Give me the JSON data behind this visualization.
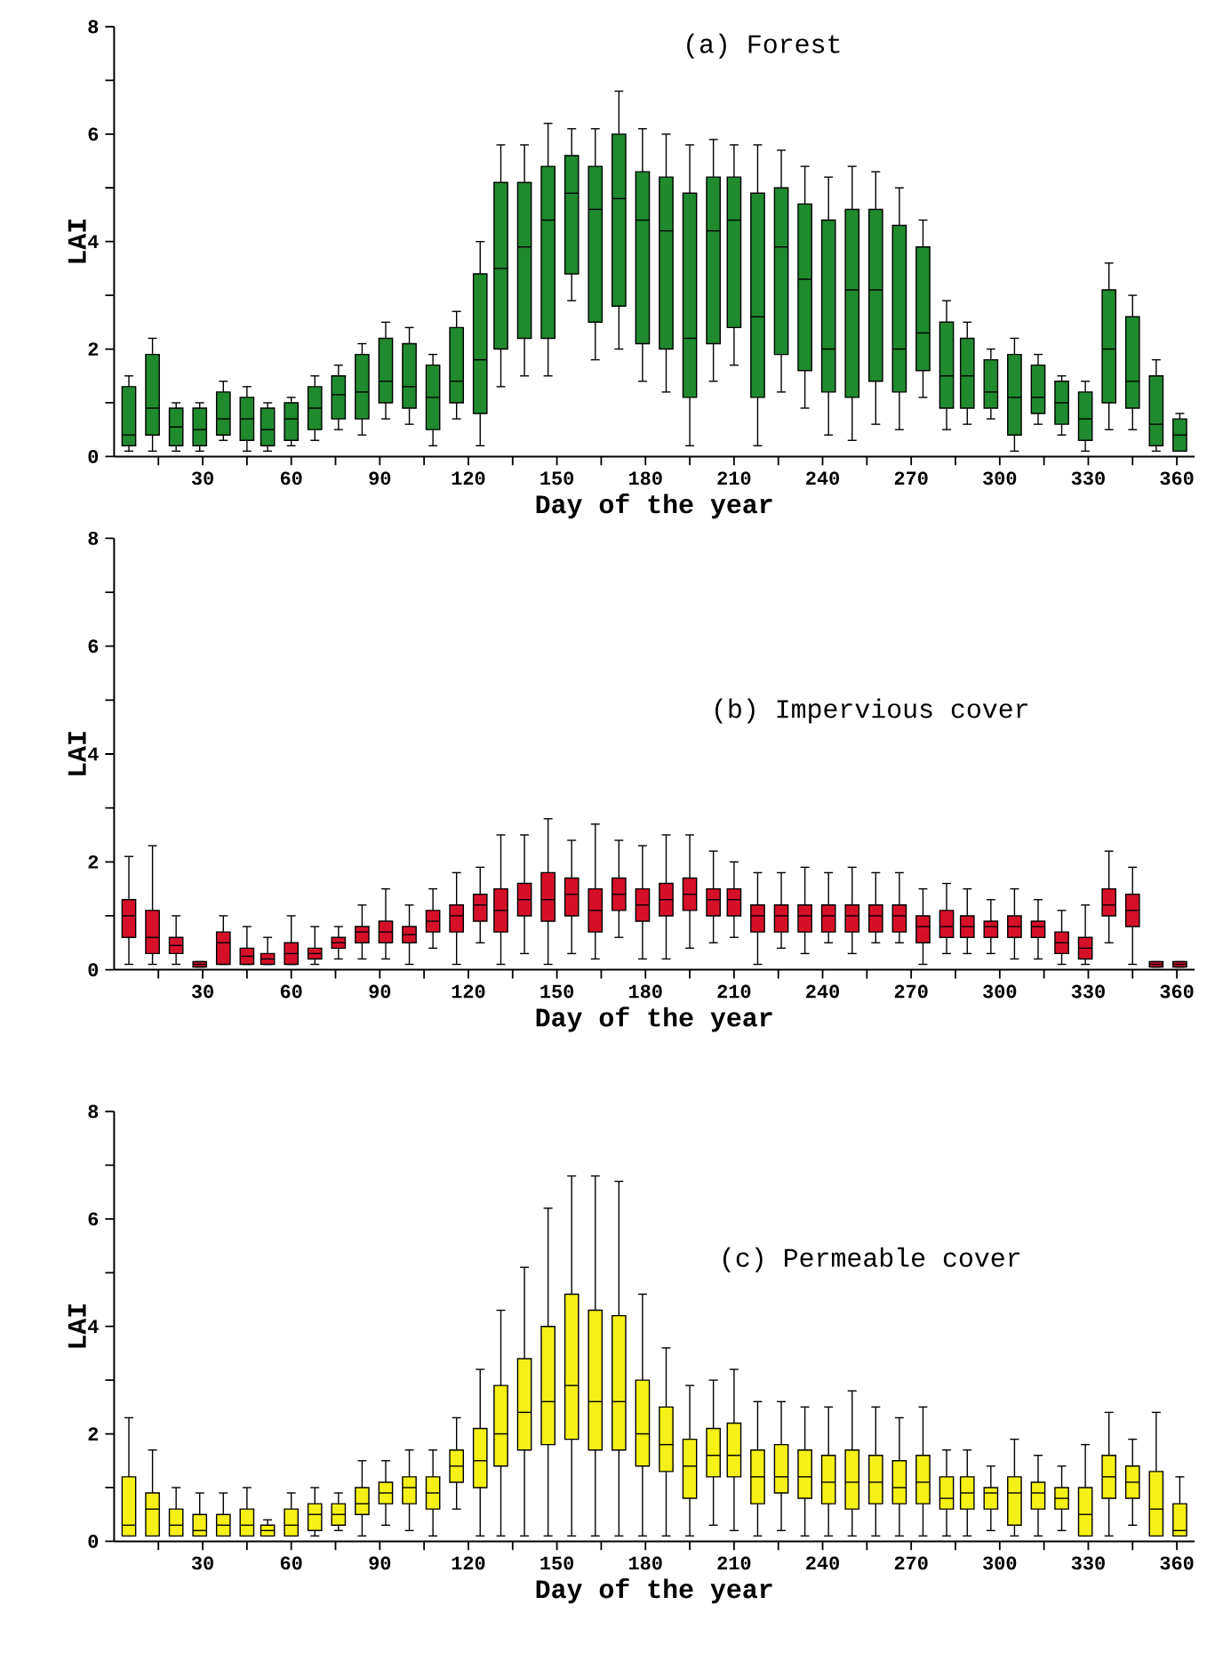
{
  "chart_data": [
    {
      "type": "box",
      "title": "(a)  Forest",
      "xlabel": "Day of the year",
      "ylabel": "LAI",
      "color": "#1f8a2e",
      "xlim": [
        0,
        366
      ],
      "ylim": [
        0,
        8
      ],
      "xticks": [
        {
          "value": 15,
          "label": null
        },
        30,
        {
          "value": 45,
          "label": null
        },
        60,
        {
          "value": 75,
          "label": null
        },
        90,
        {
          "value": 105,
          "label": null
        },
        120,
        {
          "value": 135,
          "label": null
        },
        150,
        {
          "value": 165,
          "label": null
        },
        180,
        {
          "value": 195,
          "label": null
        },
        210,
        {
          "value": 225,
          "label": null
        },
        240,
        {
          "value": 255,
          "label": null
        },
        270,
        {
          "value": 285,
          "label": null
        },
        300,
        {
          "value": 315,
          "label": null
        },
        330,
        {
          "value": 345,
          "label": null
        },
        360
      ],
      "yticks": [
        0,
        {
          "value": 1,
          "label": null
        },
        2,
        {
          "value": 3,
          "label": null
        },
        4,
        {
          "value": 5,
          "label": null
        },
        6,
        {
          "value": 7,
          "label": null
        },
        8
      ],
      "x": [
        5,
        13,
        21,
        29,
        37,
        45,
        52,
        60,
        68,
        76,
        84,
        92,
        100,
        108,
        116,
        124,
        131,
        139,
        147,
        155,
        163,
        171,
        179,
        187,
        195,
        203,
        210,
        218,
        226,
        234,
        242,
        250,
        258,
        266,
        274,
        282,
        289,
        297,
        305,
        313,
        321,
        329,
        337,
        345,
        353,
        361
      ],
      "boxes": [
        {
          "low": 0.1,
          "q1": 0.2,
          "median": 0.4,
          "q3": 1.3,
          "high": 1.5
        },
        {
          "low": 0.1,
          "q1": 0.4,
          "median": 0.9,
          "q3": 1.9,
          "high": 2.2
        },
        {
          "low": 0.1,
          "q1": 0.2,
          "median": 0.55,
          "q3": 0.9,
          "high": 1.0
        },
        {
          "low": 0.1,
          "q1": 0.2,
          "median": 0.5,
          "q3": 0.9,
          "high": 1.0
        },
        {
          "low": 0.3,
          "q1": 0.4,
          "median": 0.7,
          "q3": 1.2,
          "high": 1.4
        },
        {
          "low": 0.1,
          "q1": 0.3,
          "median": 0.7,
          "q3": 1.1,
          "high": 1.3
        },
        {
          "low": 0.1,
          "q1": 0.2,
          "median": 0.5,
          "q3": 0.9,
          "high": 1.0
        },
        {
          "low": 0.2,
          "q1": 0.3,
          "median": 0.7,
          "q3": 1.0,
          "high": 1.1
        },
        {
          "low": 0.3,
          "q1": 0.5,
          "median": 0.9,
          "q3": 1.3,
          "high": 1.5
        },
        {
          "low": 0.5,
          "q1": 0.7,
          "median": 1.15,
          "q3": 1.5,
          "high": 1.7
        },
        {
          "low": 0.4,
          "q1": 0.7,
          "median": 1.2,
          "q3": 1.9,
          "high": 2.1
        },
        {
          "low": 0.7,
          "q1": 1.0,
          "median": 1.4,
          "q3": 2.2,
          "high": 2.5
        },
        {
          "low": 0.6,
          "q1": 0.9,
          "median": 1.3,
          "q3": 2.1,
          "high": 2.4
        },
        {
          "low": 0.2,
          "q1": 0.5,
          "median": 1.1,
          "q3": 1.7,
          "high": 1.9
        },
        {
          "low": 0.7,
          "q1": 1.0,
          "median": 1.4,
          "q3": 2.4,
          "high": 2.7
        },
        {
          "low": 0.2,
          "q1": 0.8,
          "median": 1.8,
          "q3": 3.4,
          "high": 4.0
        },
        {
          "low": 1.3,
          "q1": 2.0,
          "median": 3.5,
          "q3": 5.1,
          "high": 5.8
        },
        {
          "low": 1.5,
          "q1": 2.2,
          "median": 3.9,
          "q3": 5.1,
          "high": 5.8
        },
        {
          "low": 1.5,
          "q1": 2.2,
          "median": 4.4,
          "q3": 5.4,
          "high": 6.2
        },
        {
          "low": 2.9,
          "q1": 3.4,
          "median": 4.9,
          "q3": 5.6,
          "high": 6.1
        },
        {
          "low": 1.8,
          "q1": 2.5,
          "median": 4.6,
          "q3": 5.4,
          "high": 6.1
        },
        {
          "low": 2.0,
          "q1": 2.8,
          "median": 4.8,
          "q3": 6.0,
          "high": 6.8
        },
        {
          "low": 1.4,
          "q1": 2.1,
          "median": 4.4,
          "q3": 5.3,
          "high": 6.1
        },
        {
          "low": 1.2,
          "q1": 2.0,
          "median": 4.2,
          "q3": 5.2,
          "high": 6.0
        },
        {
          "low": 0.2,
          "q1": 1.1,
          "median": 2.2,
          "q3": 4.9,
          "high": 5.8
        },
        {
          "low": 1.4,
          "q1": 2.1,
          "median": 4.2,
          "q3": 5.2,
          "high": 5.9
        },
        {
          "low": 1.7,
          "q1": 2.4,
          "median": 4.4,
          "q3": 5.2,
          "high": 5.8
        },
        {
          "low": 0.2,
          "q1": 1.1,
          "median": 2.6,
          "q3": 4.9,
          "high": 5.8
        },
        {
          "low": 1.2,
          "q1": 1.9,
          "median": 3.9,
          "q3": 5.0,
          "high": 5.7
        },
        {
          "low": 0.9,
          "q1": 1.6,
          "median": 3.3,
          "q3": 4.7,
          "high": 5.4
        },
        {
          "low": 0.4,
          "q1": 1.2,
          "median": 2.0,
          "q3": 4.4,
          "high": 5.2
        },
        {
          "low": 0.3,
          "q1": 1.1,
          "median": 3.1,
          "q3": 4.6,
          "high": 5.4
        },
        {
          "low": 0.6,
          "q1": 1.4,
          "median": 3.1,
          "q3": 4.6,
          "high": 5.3
        },
        {
          "low": 0.5,
          "q1": 1.2,
          "median": 2.0,
          "q3": 4.3,
          "high": 5.0
        },
        {
          "low": 1.1,
          "q1": 1.6,
          "median": 2.3,
          "q3": 3.9,
          "high": 4.4
        },
        {
          "low": 0.5,
          "q1": 0.9,
          "median": 1.5,
          "q3": 2.5,
          "high": 2.9
        },
        {
          "low": 0.6,
          "q1": 0.9,
          "median": 1.5,
          "q3": 2.2,
          "high": 2.5
        },
        {
          "low": 0.7,
          "q1": 0.9,
          "median": 1.2,
          "q3": 1.8,
          "high": 2.0
        },
        {
          "low": 0.1,
          "q1": 0.4,
          "median": 1.1,
          "q3": 1.9,
          "high": 2.2
        },
        {
          "low": 0.6,
          "q1": 0.8,
          "median": 1.1,
          "q3": 1.7,
          "high": 1.9
        },
        {
          "low": 0.4,
          "q1": 0.6,
          "median": 1.0,
          "q3": 1.4,
          "high": 1.5
        },
        {
          "low": 0.1,
          "q1": 0.3,
          "median": 0.7,
          "q3": 1.2,
          "high": 1.4
        },
        {
          "low": 0.5,
          "q1": 1.0,
          "median": 2.0,
          "q3": 3.1,
          "high": 3.6
        },
        {
          "low": 0.5,
          "q1": 0.9,
          "median": 1.4,
          "q3": 2.6,
          "high": 3.0
        },
        {
          "low": 0.1,
          "q1": 0.2,
          "median": 0.6,
          "q3": 1.5,
          "high": 1.8
        },
        {
          "low": 0.1,
          "q1": 0.1,
          "median": 0.4,
          "q3": 0.7,
          "high": 0.8
        }
      ]
    },
    {
      "type": "box",
      "title": "(b)  Impervious cover",
      "xlabel": "Day of the year",
      "ylabel": "LAI",
      "color": "#d7102a",
      "xlim": [
        0,
        366
      ],
      "ylim": [
        0,
        8
      ],
      "xticks": [
        {
          "value": 15,
          "label": null
        },
        30,
        {
          "value": 45,
          "label": null
        },
        60,
        {
          "value": 75,
          "label": null
        },
        90,
        {
          "value": 105,
          "label": null
        },
        120,
        {
          "value": 135,
          "label": null
        },
        150,
        {
          "value": 165,
          "label": null
        },
        180,
        {
          "value": 195,
          "label": null
        },
        210,
        {
          "value": 225,
          "label": null
        },
        240,
        {
          "value": 255,
          "label": null
        },
        270,
        {
          "value": 285,
          "label": null
        },
        300,
        {
          "value": 315,
          "label": null
        },
        330,
        {
          "value": 345,
          "label": null
        },
        360
      ],
      "yticks": [
        0,
        {
          "value": 1,
          "label": null
        },
        2,
        {
          "value": 3,
          "label": null
        },
        4,
        {
          "value": 5,
          "label": null
        },
        6,
        {
          "value": 7,
          "label": null
        },
        8
      ],
      "x": [
        5,
        13,
        21,
        29,
        37,
        45,
        52,
        60,
        68,
        76,
        84,
        92,
        100,
        108,
        116,
        124,
        131,
        139,
        147,
        155,
        163,
        171,
        179,
        187,
        195,
        203,
        210,
        218,
        226,
        234,
        242,
        250,
        258,
        266,
        274,
        282,
        289,
        297,
        305,
        313,
        321,
        329,
        337,
        345,
        353,
        361
      ],
      "boxes": [
        {
          "low": 0.1,
          "q1": 0.6,
          "median": 1.0,
          "q3": 1.3,
          "high": 2.1
        },
        {
          "low": 0.1,
          "q1": 0.3,
          "median": 0.6,
          "q3": 1.1,
          "high": 2.3
        },
        {
          "low": 0.1,
          "q1": 0.3,
          "median": 0.45,
          "q3": 0.6,
          "high": 1.0
        },
        {
          "low": 0.05,
          "q1": 0.05,
          "median": 0.1,
          "q3": 0.15,
          "high": 0.15
        },
        {
          "low": 0.1,
          "q1": 0.1,
          "median": 0.5,
          "q3": 0.7,
          "high": 1.0
        },
        {
          "low": 0.1,
          "q1": 0.1,
          "median": 0.25,
          "q3": 0.4,
          "high": 0.8
        },
        {
          "low": 0.1,
          "q1": 0.1,
          "median": 0.2,
          "q3": 0.3,
          "high": 0.6
        },
        {
          "low": 0.1,
          "q1": 0.1,
          "median": 0.3,
          "q3": 0.5,
          "high": 1.0
        },
        {
          "low": 0.1,
          "q1": 0.2,
          "median": 0.3,
          "q3": 0.4,
          "high": 0.8
        },
        {
          "low": 0.2,
          "q1": 0.4,
          "median": 0.5,
          "q3": 0.6,
          "high": 0.8
        },
        {
          "low": 0.2,
          "q1": 0.5,
          "median": 0.7,
          "q3": 0.8,
          "high": 1.2
        },
        {
          "low": 0.2,
          "q1": 0.5,
          "median": 0.7,
          "q3": 0.9,
          "high": 1.5
        },
        {
          "low": 0.1,
          "q1": 0.5,
          "median": 0.65,
          "q3": 0.8,
          "high": 1.2
        },
        {
          "low": 0.4,
          "q1": 0.7,
          "median": 0.9,
          "q3": 1.1,
          "high": 1.5
        },
        {
          "low": 0.1,
          "q1": 0.7,
          "median": 1.0,
          "q3": 1.2,
          "high": 1.8
        },
        {
          "low": 0.5,
          "q1": 0.9,
          "median": 1.2,
          "q3": 1.4,
          "high": 1.9
        },
        {
          "low": 0.1,
          "q1": 0.7,
          "median": 1.1,
          "q3": 1.5,
          "high": 2.5
        },
        {
          "low": 0.3,
          "q1": 1.0,
          "median": 1.3,
          "q3": 1.6,
          "high": 2.5
        },
        {
          "low": 0.1,
          "q1": 0.9,
          "median": 1.3,
          "q3": 1.8,
          "high": 2.8
        },
        {
          "low": 0.3,
          "q1": 1.0,
          "median": 1.4,
          "q3": 1.7,
          "high": 2.4
        },
        {
          "low": 0.2,
          "q1": 0.7,
          "median": 1.1,
          "q3": 1.5,
          "high": 2.7
        },
        {
          "low": 0.6,
          "q1": 1.1,
          "median": 1.4,
          "q3": 1.7,
          "high": 2.4
        },
        {
          "low": 0.2,
          "q1": 0.9,
          "median": 1.2,
          "q3": 1.5,
          "high": 2.3
        },
        {
          "low": 0.2,
          "q1": 1.0,
          "median": 1.3,
          "q3": 1.6,
          "high": 2.5
        },
        {
          "low": 0.4,
          "q1": 1.1,
          "median": 1.4,
          "q3": 1.7,
          "high": 2.5
        },
        {
          "low": 0.5,
          "q1": 1.0,
          "median": 1.3,
          "q3": 1.5,
          "high": 2.2
        },
        {
          "low": 0.6,
          "q1": 1.0,
          "median": 1.3,
          "q3": 1.5,
          "high": 2.0
        },
        {
          "low": 0.1,
          "q1": 0.7,
          "median": 1.0,
          "q3": 1.2,
          "high": 1.8
        },
        {
          "low": 0.4,
          "q1": 0.7,
          "median": 1.0,
          "q3": 1.2,
          "high": 1.8
        },
        {
          "low": 0.3,
          "q1": 0.7,
          "median": 1.0,
          "q3": 1.2,
          "high": 1.9
        },
        {
          "low": 0.5,
          "q1": 0.7,
          "median": 1.0,
          "q3": 1.2,
          "high": 1.8
        },
        {
          "low": 0.3,
          "q1": 0.7,
          "median": 1.0,
          "q3": 1.2,
          "high": 1.9
        },
        {
          "low": 0.5,
          "q1": 0.7,
          "median": 1.0,
          "q3": 1.2,
          "high": 1.8
        },
        {
          "low": 0.5,
          "q1": 0.7,
          "median": 1.0,
          "q3": 1.2,
          "high": 1.8
        },
        {
          "low": 0.1,
          "q1": 0.5,
          "median": 0.8,
          "q3": 1.0,
          "high": 1.5
        },
        {
          "low": 0.3,
          "q1": 0.6,
          "median": 0.8,
          "q3": 1.1,
          "high": 1.6
        },
        {
          "low": 0.3,
          "q1": 0.6,
          "median": 0.8,
          "q3": 1.0,
          "high": 1.5
        },
        {
          "low": 0.3,
          "q1": 0.6,
          "median": 0.8,
          "q3": 0.9,
          "high": 1.3
        },
        {
          "low": 0.2,
          "q1": 0.6,
          "median": 0.8,
          "q3": 1.0,
          "high": 1.5
        },
        {
          "low": 0.2,
          "q1": 0.6,
          "median": 0.8,
          "q3": 0.9,
          "high": 1.3
        },
        {
          "low": 0.1,
          "q1": 0.3,
          "median": 0.5,
          "q3": 0.7,
          "high": 1.1
        },
        {
          "low": 0.1,
          "q1": 0.2,
          "median": 0.4,
          "q3": 0.6,
          "high": 1.2
        },
        {
          "low": 0.5,
          "q1": 1.0,
          "median": 1.2,
          "q3": 1.5,
          "high": 2.2
        },
        {
          "low": 0.1,
          "q1": 0.8,
          "median": 1.1,
          "q3": 1.4,
          "high": 1.9
        },
        {
          "low": 0.05,
          "q1": 0.05,
          "median": 0.1,
          "q3": 0.15,
          "high": 0.15
        },
        {
          "low": 0.05,
          "q1": 0.05,
          "median": 0.1,
          "q3": 0.15,
          "high": 0.15
        }
      ]
    },
    {
      "type": "box",
      "title": "(c)  Permeable cover",
      "xlabel": "Day of the year",
      "ylabel": "LAI",
      "color": "#f5f016",
      "xlim": [
        0,
        366
      ],
      "ylim": [
        0,
        8
      ],
      "xticks": [
        {
          "value": 15,
          "label": null
        },
        30,
        {
          "value": 45,
          "label": null
        },
        60,
        {
          "value": 75,
          "label": null
        },
        90,
        {
          "value": 105,
          "label": null
        },
        120,
        {
          "value": 135,
          "label": null
        },
        150,
        {
          "value": 165,
          "label": null
        },
        180,
        {
          "value": 195,
          "label": null
        },
        210,
        {
          "value": 225,
          "label": null
        },
        240,
        {
          "value": 255,
          "label": null
        },
        270,
        {
          "value": 285,
          "label": null
        },
        300,
        {
          "value": 315,
          "label": null
        },
        330,
        {
          "value": 345,
          "label": null
        },
        360
      ],
      "yticks": [
        0,
        {
          "value": 1,
          "label": null
        },
        2,
        {
          "value": 3,
          "label": null
        },
        4,
        {
          "value": 5,
          "label": null
        },
        6,
        {
          "value": 7,
          "label": null
        },
        8
      ],
      "x": [
        5,
        13,
        21,
        29,
        37,
        45,
        52,
        60,
        68,
        76,
        84,
        92,
        100,
        108,
        116,
        124,
        131,
        139,
        147,
        155,
        163,
        171,
        179,
        187,
        195,
        203,
        210,
        218,
        226,
        234,
        242,
        250,
        258,
        266,
        274,
        282,
        289,
        297,
        305,
        313,
        321,
        329,
        337,
        345,
        353,
        361
      ],
      "boxes": [
        {
          "low": 0.1,
          "q1": 0.1,
          "median": 0.3,
          "q3": 1.2,
          "high": 2.3
        },
        {
          "low": 0.1,
          "q1": 0.1,
          "median": 0.6,
          "q3": 0.9,
          "high": 1.7
        },
        {
          "low": 0.1,
          "q1": 0.1,
          "median": 0.3,
          "q3": 0.6,
          "high": 1.0
        },
        {
          "low": 0.1,
          "q1": 0.1,
          "median": 0.2,
          "q3": 0.5,
          "high": 0.9
        },
        {
          "low": 0.1,
          "q1": 0.1,
          "median": 0.3,
          "q3": 0.5,
          "high": 0.9
        },
        {
          "low": 0.1,
          "q1": 0.1,
          "median": 0.3,
          "q3": 0.6,
          "high": 1.0
        },
        {
          "low": 0.1,
          "q1": 0.1,
          "median": 0.2,
          "q3": 0.3,
          "high": 0.4
        },
        {
          "low": 0.1,
          "q1": 0.1,
          "median": 0.3,
          "q3": 0.6,
          "high": 0.9
        },
        {
          "low": 0.1,
          "q1": 0.2,
          "median": 0.5,
          "q3": 0.7,
          "high": 1.0
        },
        {
          "low": 0.2,
          "q1": 0.3,
          "median": 0.5,
          "q3": 0.7,
          "high": 0.9
        },
        {
          "low": 0.1,
          "q1": 0.5,
          "median": 0.7,
          "q3": 1.0,
          "high": 1.5
        },
        {
          "low": 0.3,
          "q1": 0.7,
          "median": 0.9,
          "q3": 1.1,
          "high": 1.5
        },
        {
          "low": 0.2,
          "q1": 0.7,
          "median": 1.0,
          "q3": 1.2,
          "high": 1.7
        },
        {
          "low": 0.1,
          "q1": 0.6,
          "median": 0.9,
          "q3": 1.2,
          "high": 1.7
        },
        {
          "low": 0.6,
          "q1": 1.1,
          "median": 1.4,
          "q3": 1.7,
          "high": 2.3
        },
        {
          "low": 0.1,
          "q1": 1.0,
          "median": 1.5,
          "q3": 2.1,
          "high": 3.2
        },
        {
          "low": 0.1,
          "q1": 1.4,
          "median": 2.0,
          "q3": 2.9,
          "high": 4.3
        },
        {
          "low": 0.1,
          "q1": 1.7,
          "median": 2.4,
          "q3": 3.4,
          "high": 5.1
        },
        {
          "low": 0.1,
          "q1": 1.8,
          "median": 2.6,
          "q3": 4.0,
          "high": 6.2
        },
        {
          "low": 0.1,
          "q1": 1.9,
          "median": 2.9,
          "q3": 4.6,
          "high": 6.8
        },
        {
          "low": 0.1,
          "q1": 1.7,
          "median": 2.6,
          "q3": 4.3,
          "high": 6.8
        },
        {
          "low": 0.1,
          "q1": 1.7,
          "median": 2.6,
          "q3": 4.2,
          "high": 6.7
        },
        {
          "low": 0.1,
          "q1": 1.4,
          "median": 2.0,
          "q3": 3.0,
          "high": 4.6
        },
        {
          "low": 0.1,
          "q1": 1.3,
          "median": 1.8,
          "q3": 2.5,
          "high": 3.6
        },
        {
          "low": 0.1,
          "q1": 0.8,
          "median": 1.4,
          "q3": 1.9,
          "high": 2.9
        },
        {
          "low": 0.3,
          "q1": 1.2,
          "median": 1.6,
          "q3": 2.1,
          "high": 3.0
        },
        {
          "low": 0.2,
          "q1": 1.2,
          "median": 1.6,
          "q3": 2.2,
          "high": 3.2
        },
        {
          "low": 0.1,
          "q1": 0.7,
          "median": 1.2,
          "q3": 1.7,
          "high": 2.6
        },
        {
          "low": 0.2,
          "q1": 0.9,
          "median": 1.2,
          "q3": 1.8,
          "high": 2.6
        },
        {
          "low": 0.1,
          "q1": 0.8,
          "median": 1.2,
          "q3": 1.7,
          "high": 2.5
        },
        {
          "low": 0.1,
          "q1": 0.7,
          "median": 1.1,
          "q3": 1.6,
          "high": 2.5
        },
        {
          "low": 0.1,
          "q1": 0.6,
          "median": 1.1,
          "q3": 1.7,
          "high": 2.8
        },
        {
          "low": 0.1,
          "q1": 0.7,
          "median": 1.1,
          "q3": 1.6,
          "high": 2.5
        },
        {
          "low": 0.1,
          "q1": 0.7,
          "median": 1.0,
          "q3": 1.5,
          "high": 2.3
        },
        {
          "low": 0.1,
          "q1": 0.7,
          "median": 1.1,
          "q3": 1.6,
          "high": 2.5
        },
        {
          "low": 0.1,
          "q1": 0.6,
          "median": 0.8,
          "q3": 1.2,
          "high": 1.7
        },
        {
          "low": 0.1,
          "q1": 0.6,
          "median": 0.9,
          "q3": 1.2,
          "high": 1.7
        },
        {
          "low": 0.2,
          "q1": 0.6,
          "median": 0.9,
          "q3": 1.0,
          "high": 1.4
        },
        {
          "low": 0.1,
          "q1": 0.3,
          "median": 0.9,
          "q3": 1.2,
          "high": 1.9
        },
        {
          "low": 0.1,
          "q1": 0.6,
          "median": 0.9,
          "q3": 1.1,
          "high": 1.6
        },
        {
          "low": 0.2,
          "q1": 0.6,
          "median": 0.8,
          "q3": 1.0,
          "high": 1.4
        },
        {
          "low": 0.1,
          "q1": 0.1,
          "median": 0.5,
          "q3": 1.0,
          "high": 1.8
        },
        {
          "low": 0.1,
          "q1": 0.8,
          "median": 1.2,
          "q3": 1.6,
          "high": 2.4
        },
        {
          "low": 0.3,
          "q1": 0.8,
          "median": 1.1,
          "q3": 1.4,
          "high": 1.9
        },
        {
          "low": 0.1,
          "q1": 0.1,
          "median": 0.6,
          "q3": 1.3,
          "high": 2.4
        },
        {
          "low": 0.1,
          "q1": 0.1,
          "median": 0.2,
          "q3": 0.7,
          "high": 1.2
        }
      ]
    }
  ]
}
